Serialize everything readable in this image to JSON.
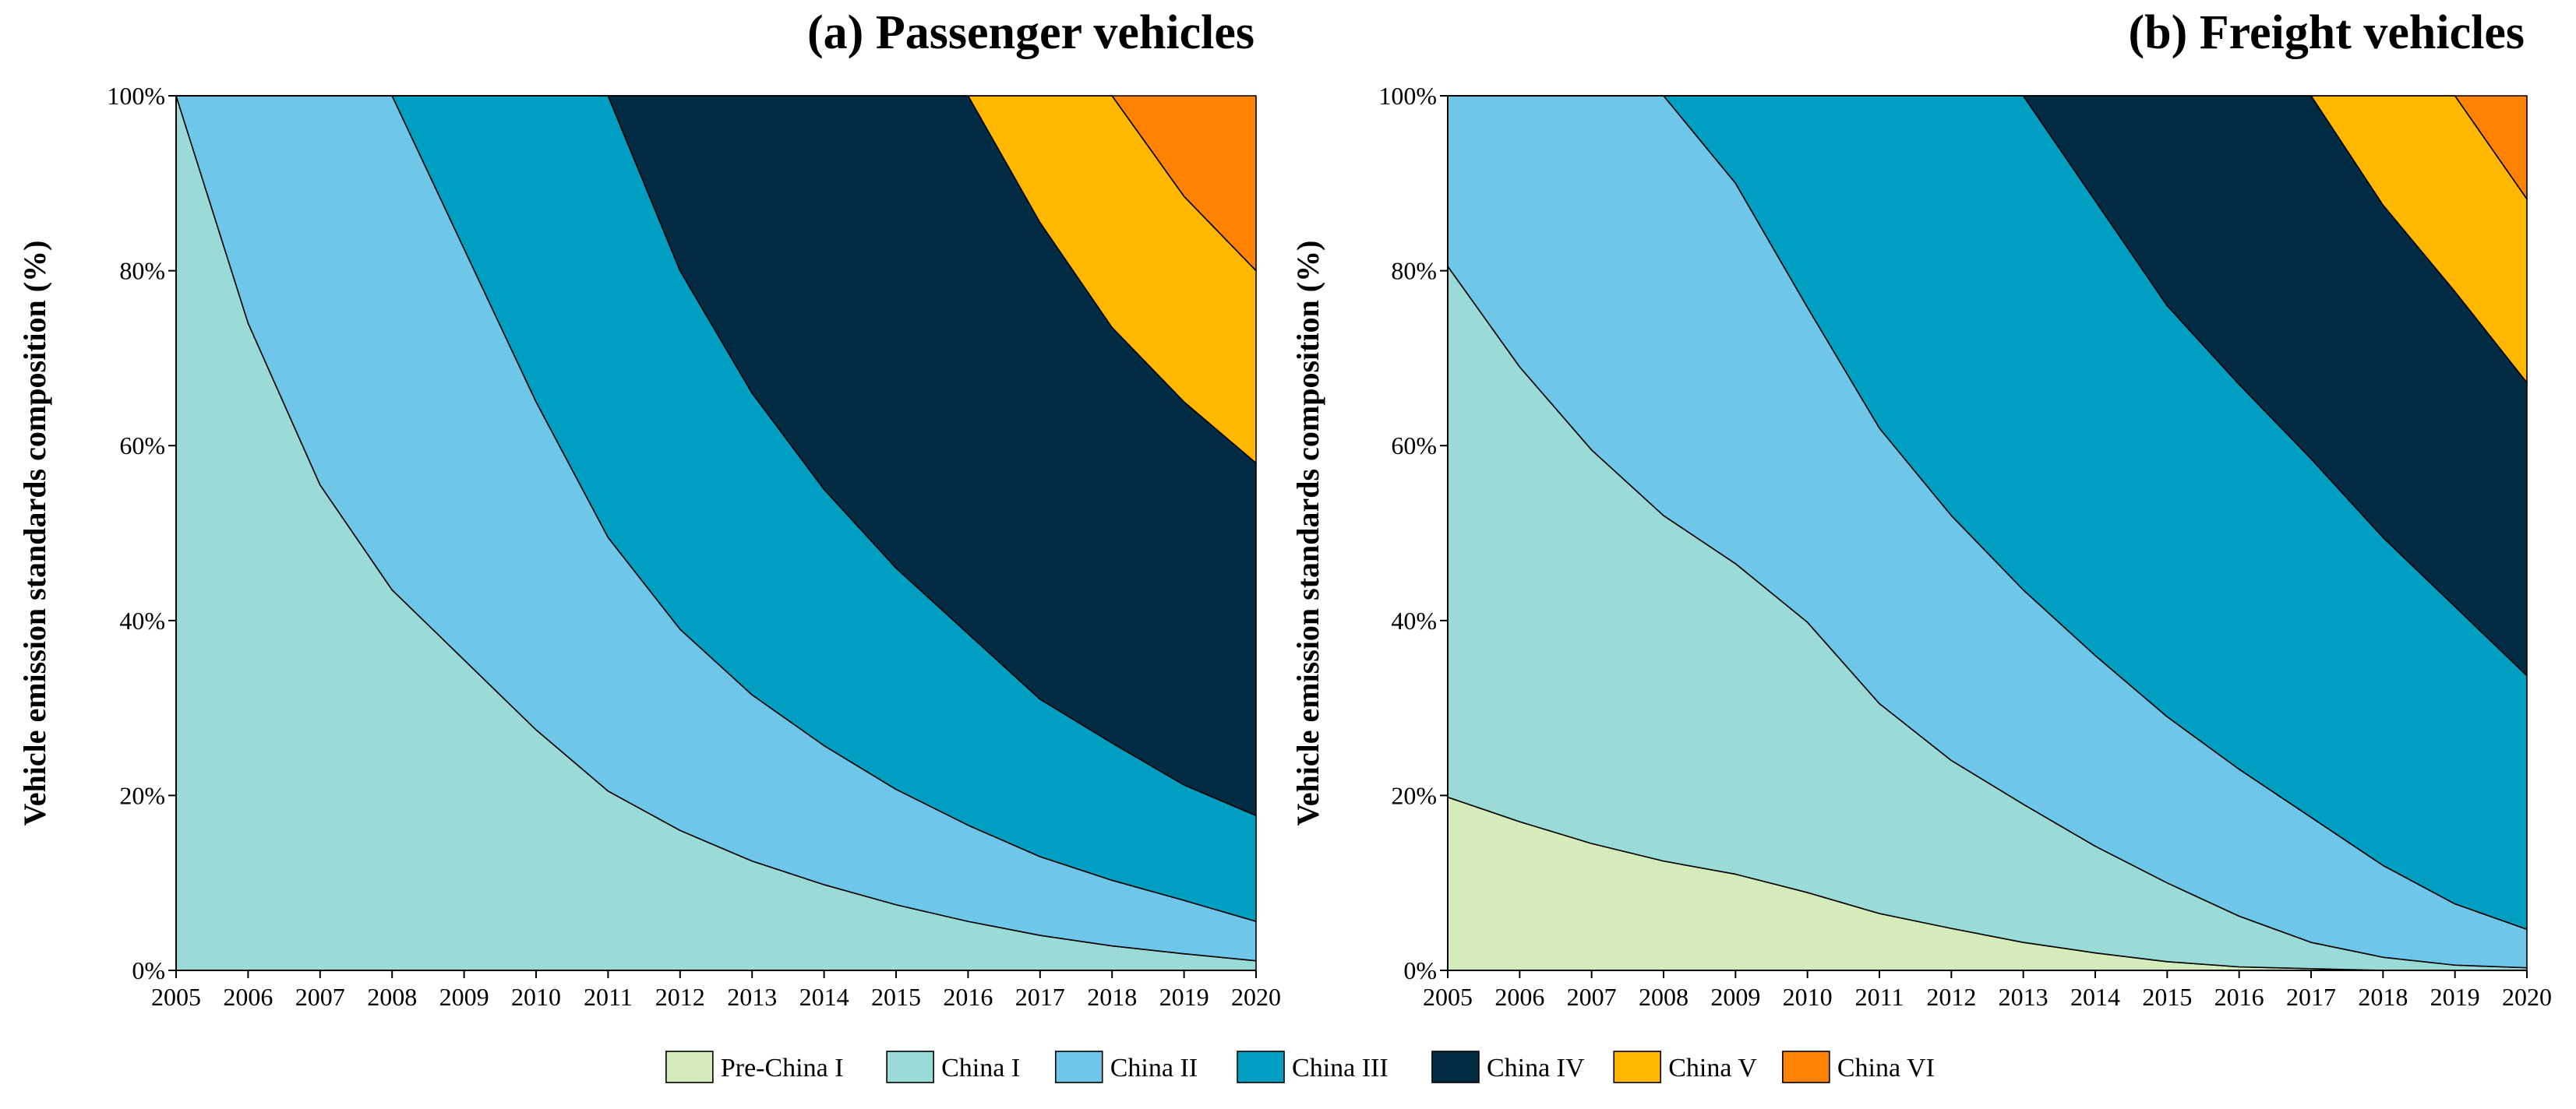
{
  "chart_data": [
    {
      "type": "area",
      "stacked": true,
      "title": "(a) Passenger vehicles",
      "ylabel": "Vehicle emission standards composition (%)",
      "xlabel": "",
      "ylim": [
        0,
        100
      ],
      "yticks": [
        "0%",
        "20%",
        "40%",
        "60%",
        "80%",
        "100%"
      ],
      "x": [
        "2005",
        "2006",
        "2007",
        "2008",
        "2009",
        "2010",
        "2011",
        "2012",
        "2013",
        "2014",
        "2015",
        "2016",
        "2017",
        "2018",
        "2019",
        "2020"
      ],
      "series": [
        {
          "name": "Pre-China I",
          "values": [
            0,
            0,
            0,
            0,
            0,
            0,
            0,
            0,
            0,
            0,
            0,
            0,
            0,
            0,
            0,
            0
          ]
        },
        {
          "name": "China I",
          "values": [
            100,
            74,
            55.5,
            43.5,
            35.5,
            27.5,
            20.5,
            16,
            12.5,
            9.8,
            7.5,
            5.6,
            4,
            2.8,
            1.9,
            1.1
          ]
        },
        {
          "name": "China II",
          "values": [
            0,
            26,
            44.5,
            56.5,
            47,
            37.5,
            29,
            23,
            19,
            15.9,
            13.2,
            11,
            9,
            7.5,
            6.1,
            4.5
          ]
        },
        {
          "name": "China III",
          "values": [
            0,
            0,
            0,
            0,
            17.5,
            35,
            50.5,
            41,
            34.5,
            29.3,
            25.3,
            21.9,
            18,
            15.7,
            13.2,
            12.1
          ]
        },
        {
          "name": "China IV",
          "values": [
            0,
            0,
            0,
            0,
            0,
            0,
            0,
            20,
            34,
            45,
            54,
            61.5,
            54.5,
            47.5,
            43.8,
            40.3
          ]
        },
        {
          "name": "China V",
          "values": [
            0,
            0,
            0,
            0,
            0,
            0,
            0,
            0,
            0,
            0,
            0,
            0,
            14.5,
            26.5,
            23.5,
            22
          ]
        },
        {
          "name": "China VI",
          "values": [
            0,
            0,
            0,
            0,
            0,
            0,
            0,
            0,
            0,
            0,
            0,
            0,
            0,
            0,
            11.5,
            20
          ]
        }
      ]
    },
    {
      "type": "area",
      "stacked": true,
      "title": "(b) Freight vehicles",
      "ylabel": "Vehicle emission standards composition (%)",
      "xlabel": "",
      "ylim": [
        0,
        100
      ],
      "yticks": [
        "0%",
        "20%",
        "40%",
        "60%",
        "80%",
        "100%"
      ],
      "x": [
        "2005",
        "2006",
        "2007",
        "2008",
        "2009",
        "2010",
        "2011",
        "2012",
        "2013",
        "2014",
        "2015",
        "2016",
        "2017",
        "2018",
        "2019",
        "2020"
      ],
      "series": [
        {
          "name": "Pre-China I",
          "values": [
            19.8,
            17,
            14.5,
            12.5,
            11,
            8.9,
            6.5,
            4.8,
            3.2,
            2,
            1,
            0.4,
            0.2,
            0,
            0,
            0
          ]
        },
        {
          "name": "China I",
          "values": [
            60.7,
            52,
            45,
            39.5,
            35.5,
            30.9,
            24,
            19.2,
            15.8,
            12.2,
            9,
            5.8,
            3,
            1.5,
            0.6,
            0.3
          ]
        },
        {
          "name": "China II",
          "values": [
            19.5,
            31,
            40.5,
            48,
            43.5,
            36,
            31.5,
            28,
            24.5,
            21.8,
            19,
            16.8,
            14.3,
            10.5,
            7,
            4.4
          ]
        },
        {
          "name": "China III",
          "values": [
            0,
            0,
            0,
            0,
            10,
            24.2,
            38,
            48,
            56.5,
            52,
            47,
            44,
            41,
            37.5,
            34,
            29
          ]
        },
        {
          "name": "China IV",
          "values": [
            0,
            0,
            0,
            0,
            0,
            0,
            0,
            0,
            0,
            12,
            24,
            33,
            41.5,
            38,
            36,
            33.5
          ]
        },
        {
          "name": "China V",
          "values": [
            0,
            0,
            0,
            0,
            0,
            0,
            0,
            0,
            0,
            0,
            0,
            0,
            0,
            12.5,
            22.4,
            21
          ]
        },
        {
          "name": "China VI",
          "values": [
            0,
            0,
            0,
            0,
            0,
            0,
            0,
            0,
            0,
            0,
            0,
            0,
            0,
            0,
            0,
            11.8
          ]
        }
      ]
    }
  ],
  "legend": {
    "items": [
      {
        "label": "Pre-China I",
        "color": "#d3ecb9"
      },
      {
        "label": "China I",
        "color": "#9adbd7"
      },
      {
        "label": "China II",
        "color": "#6ec7e9"
      },
      {
        "label": "China III",
        "color": "#009fc1"
      },
      {
        "label": "China IV",
        "color": "#022c44"
      },
      {
        "label": "China V",
        "color": "#ffb700"
      },
      {
        "label": "China VI",
        "color": "#ff8200"
      }
    ]
  }
}
